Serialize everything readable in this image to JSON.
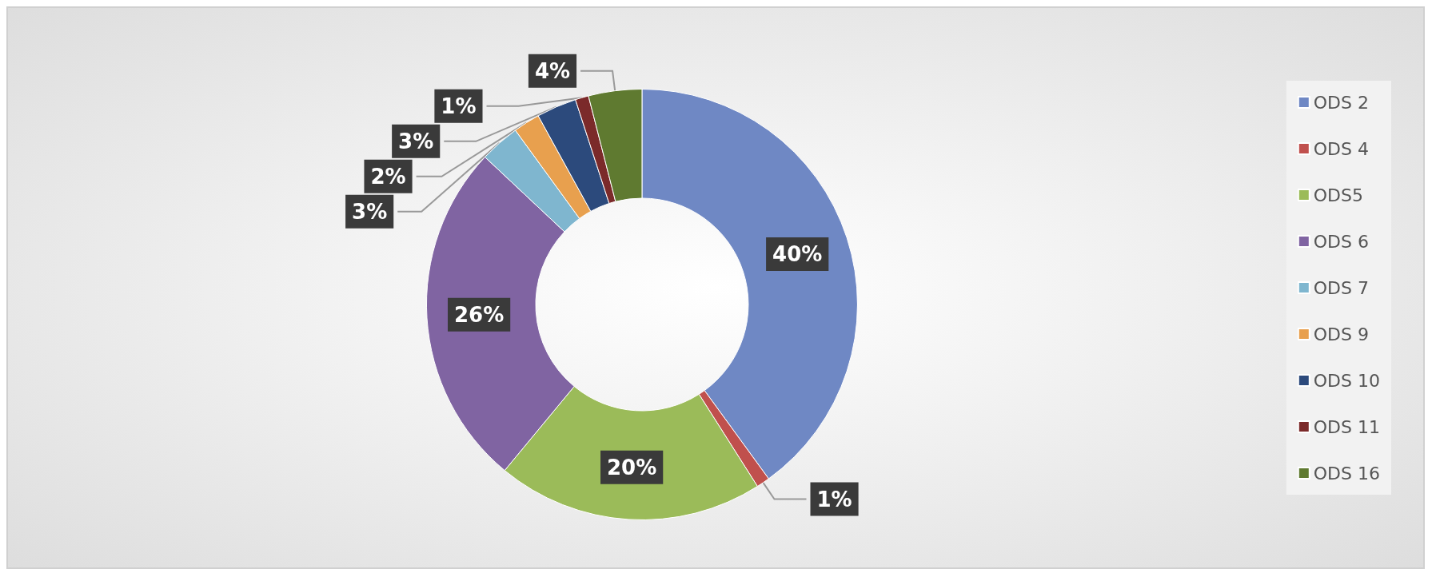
{
  "chart_data": {
    "type": "donut",
    "categories": [
      "ODS 2",
      "ODS 4",
      "ODS5",
      "ODS 6",
      "ODS 7",
      "ODS 9",
      "ODS 10",
      "ODS 11",
      "ODS 16"
    ],
    "values": [
      40,
      1,
      20,
      26,
      3,
      2,
      3,
      1,
      4
    ],
    "value_labels": [
      "40%",
      "1%",
      "20%",
      "26%",
      "3%",
      "2%",
      "3%",
      "1%",
      "4%"
    ],
    "colors": [
      "#6f88c4",
      "#c0504d",
      "#9bbb59",
      "#8064a2",
      "#7fb6cf",
      "#e8a04e",
      "#2c4a7c",
      "#7b2a2a",
      "#5f7a30"
    ],
    "legend": "right"
  }
}
